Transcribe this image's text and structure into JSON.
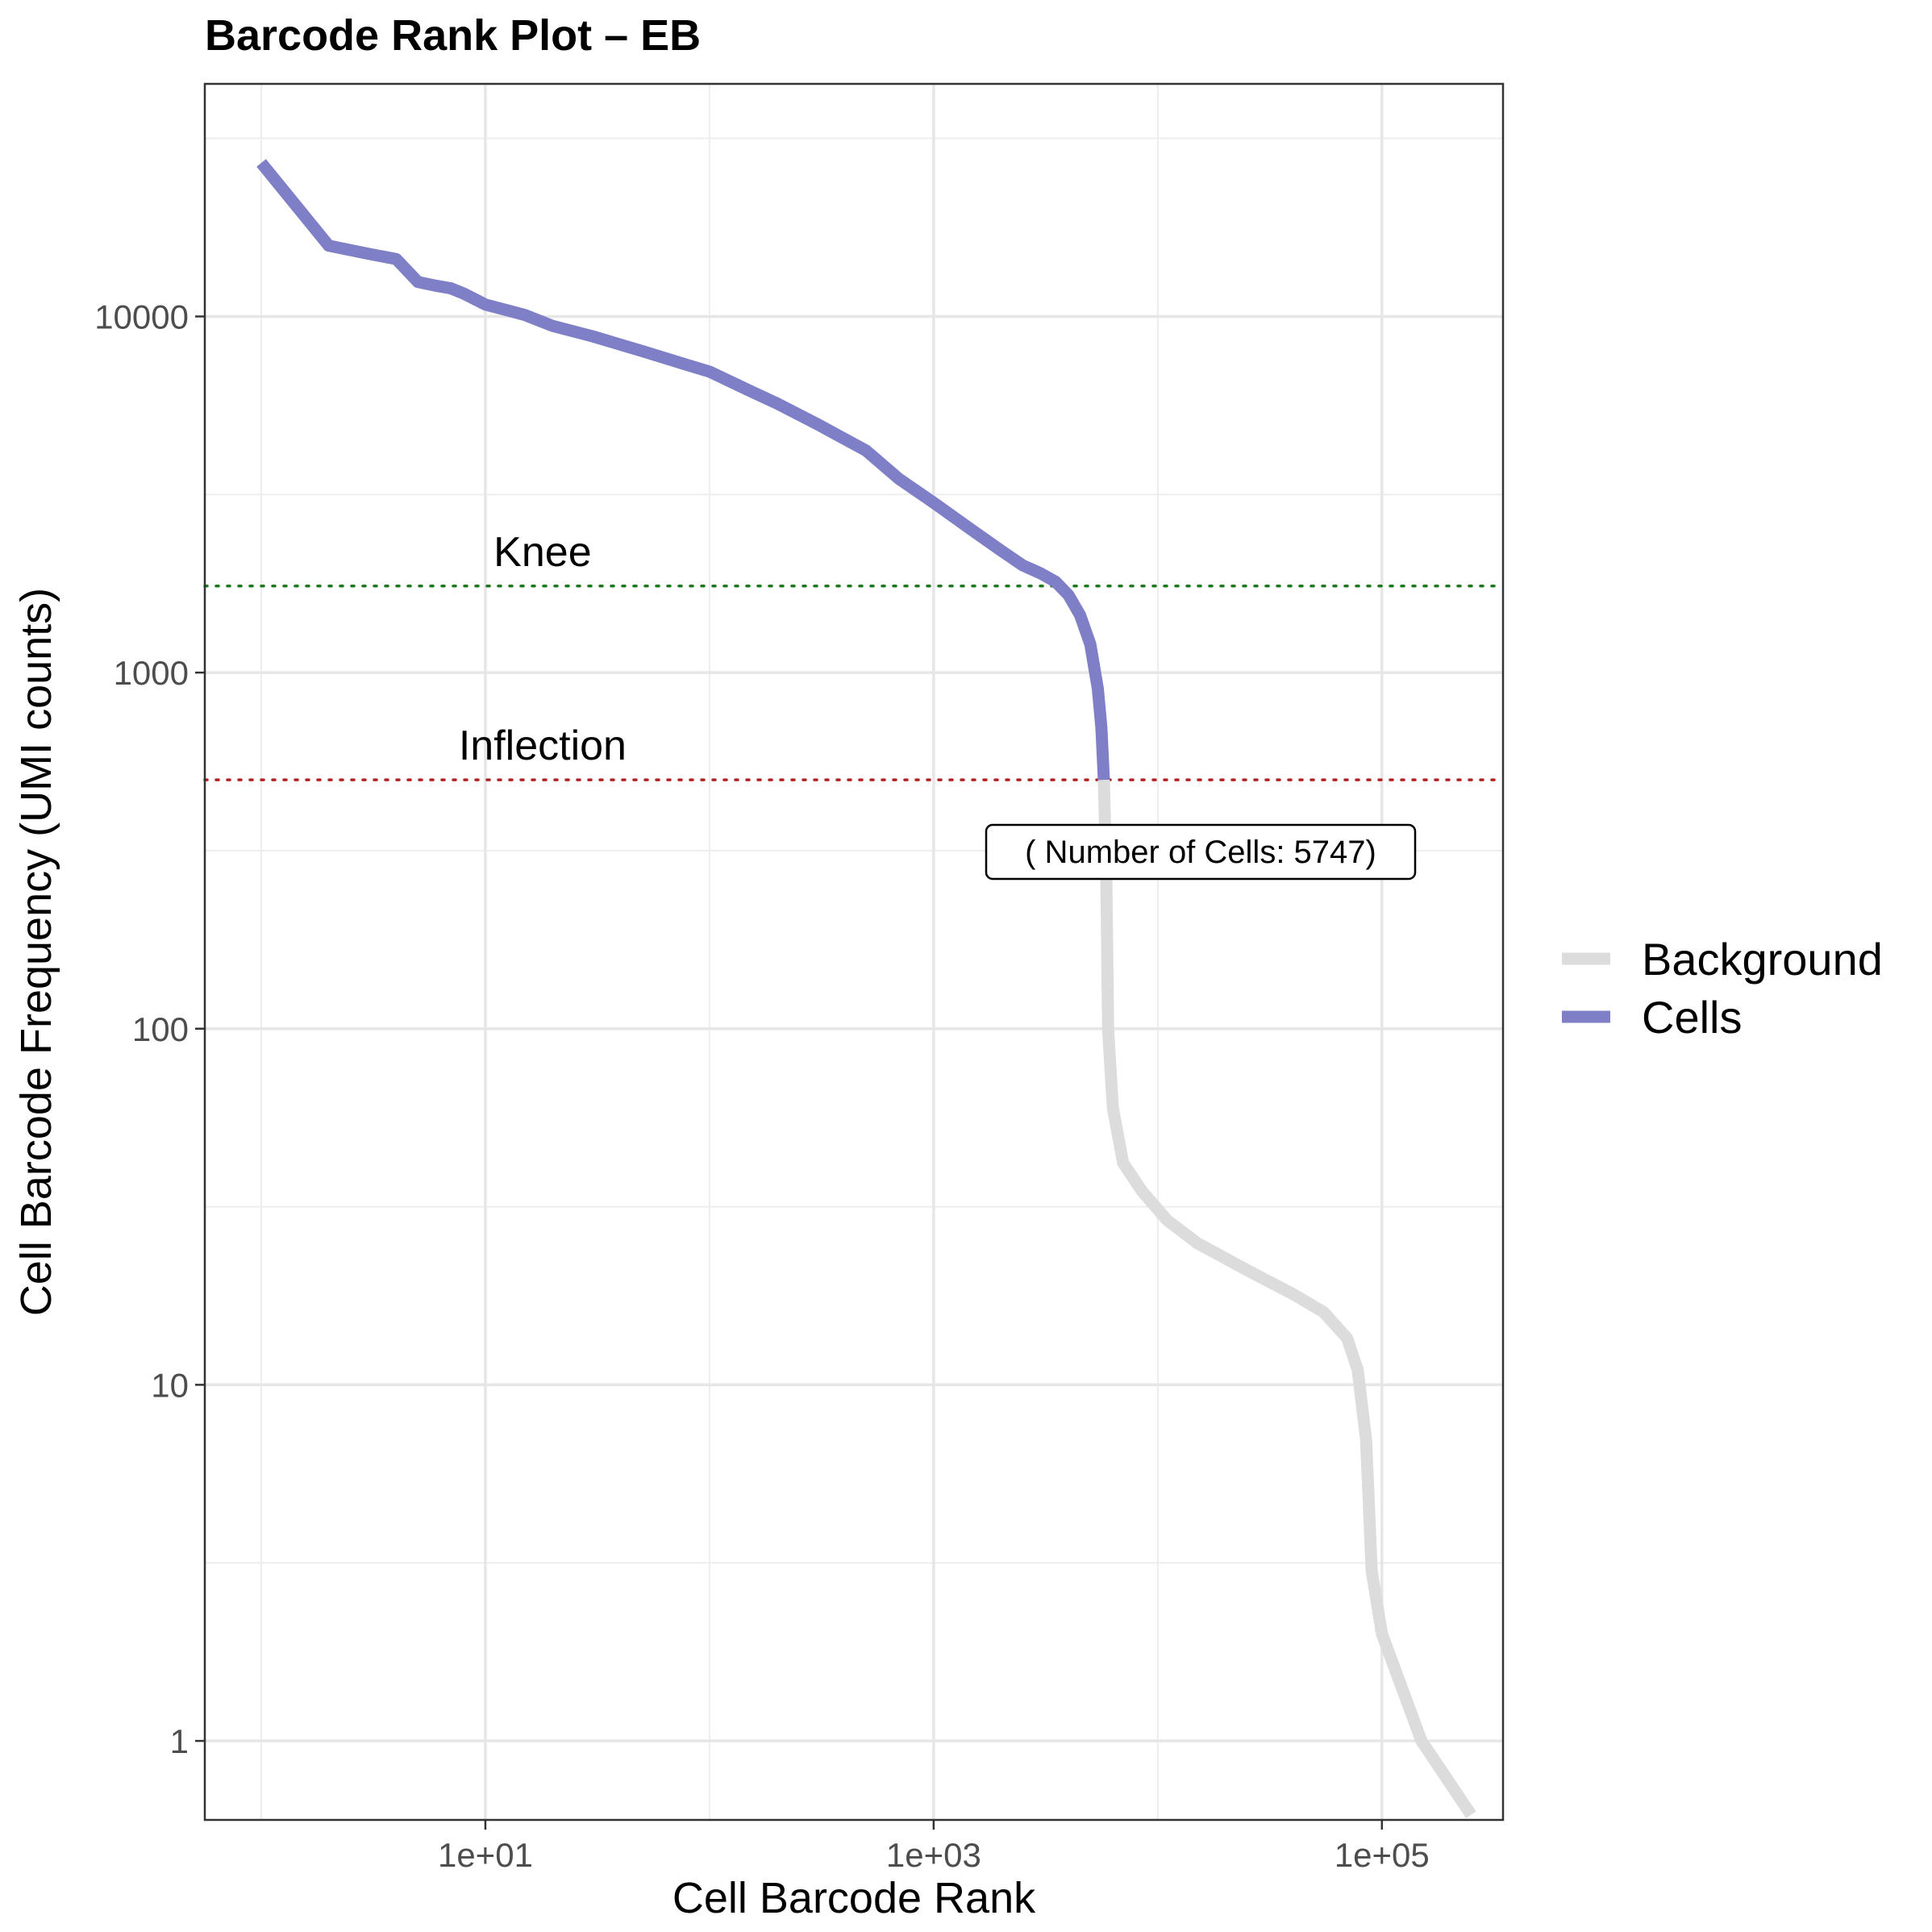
{
  "chart_data": {
    "type": "line",
    "title": "Barcode Rank Plot – EB",
    "xlabel": "Cell Barcode Rank",
    "ylabel": "Cell Barcode Frequency (UMI counts)",
    "x_scale": "log10",
    "y_scale": "log10",
    "xlim": [
      0.56,
      347000
    ],
    "ylim": [
      0.6,
      45000
    ],
    "x_ticks": [
      {
        "value": 10,
        "label": "1e+01"
      },
      {
        "value": 1000,
        "label": "1e+03"
      },
      {
        "value": 100000,
        "label": "1e+05"
      }
    ],
    "y_ticks": [
      {
        "value": 1,
        "label": "1"
      },
      {
        "value": 10,
        "label": "10"
      },
      {
        "value": 100,
        "label": "100"
      },
      {
        "value": 1000,
        "label": "1000"
      },
      {
        "value": 10000,
        "label": "10000"
      }
    ],
    "grid": true,
    "legend_position": "right",
    "series": [
      {
        "name": "Background",
        "color": "#dcdcdc",
        "points": [
          [
            5747,
            500
          ],
          [
            5900,
            250
          ],
          [
            6000,
            100
          ],
          [
            6300,
            60
          ],
          [
            7000,
            42
          ],
          [
            8500,
            35
          ],
          [
            11000,
            29
          ],
          [
            15000,
            25
          ],
          [
            25000,
            21
          ],
          [
            40000,
            18
          ],
          [
            55000,
            16
          ],
          [
            70000,
            13.5
          ],
          [
            78000,
            11
          ],
          [
            85000,
            7
          ],
          [
            90000,
            3
          ],
          [
            100000,
            2
          ],
          [
            150000,
            1
          ],
          [
            250000,
            0.62
          ]
        ]
      },
      {
        "name": "Cells",
        "color": "#7f7fc8",
        "points": [
          [
            1,
            27000
          ],
          [
            2,
            15800
          ],
          [
            3,
            15000
          ],
          [
            4,
            14500
          ],
          [
            5,
            12500
          ],
          [
            6,
            12200
          ],
          [
            7,
            12000
          ],
          [
            8,
            11600
          ],
          [
            10,
            10800
          ],
          [
            15,
            10100
          ],
          [
            20,
            9400
          ],
          [
            30,
            8800
          ],
          [
            50,
            8000
          ],
          [
            80,
            7300
          ],
          [
            100,
            7000
          ],
          [
            150,
            6200
          ],
          [
            200,
            5700
          ],
          [
            300,
            5000
          ],
          [
            500,
            4200
          ],
          [
            700,
            3500
          ],
          [
            1000,
            3000
          ],
          [
            1500,
            2500
          ],
          [
            2000,
            2200
          ],
          [
            2500,
            2000
          ],
          [
            3000,
            1900
          ],
          [
            3500,
            1800
          ],
          [
            4000,
            1650
          ],
          [
            4500,
            1450
          ],
          [
            5000,
            1200
          ],
          [
            5400,
            900
          ],
          [
            5600,
            700
          ],
          [
            5747,
            500
          ]
        ]
      }
    ],
    "reference_lines": [
      {
        "name": "Knee",
        "y": 1750,
        "color": "#1a7a1a"
      },
      {
        "name": "Inflection",
        "y": 500,
        "color": "#b22222"
      }
    ],
    "annotations": {
      "knee_label": "Knee",
      "inflection_label": "Inflection",
      "cells_box": "( Number of Cells: 5747)"
    }
  }
}
